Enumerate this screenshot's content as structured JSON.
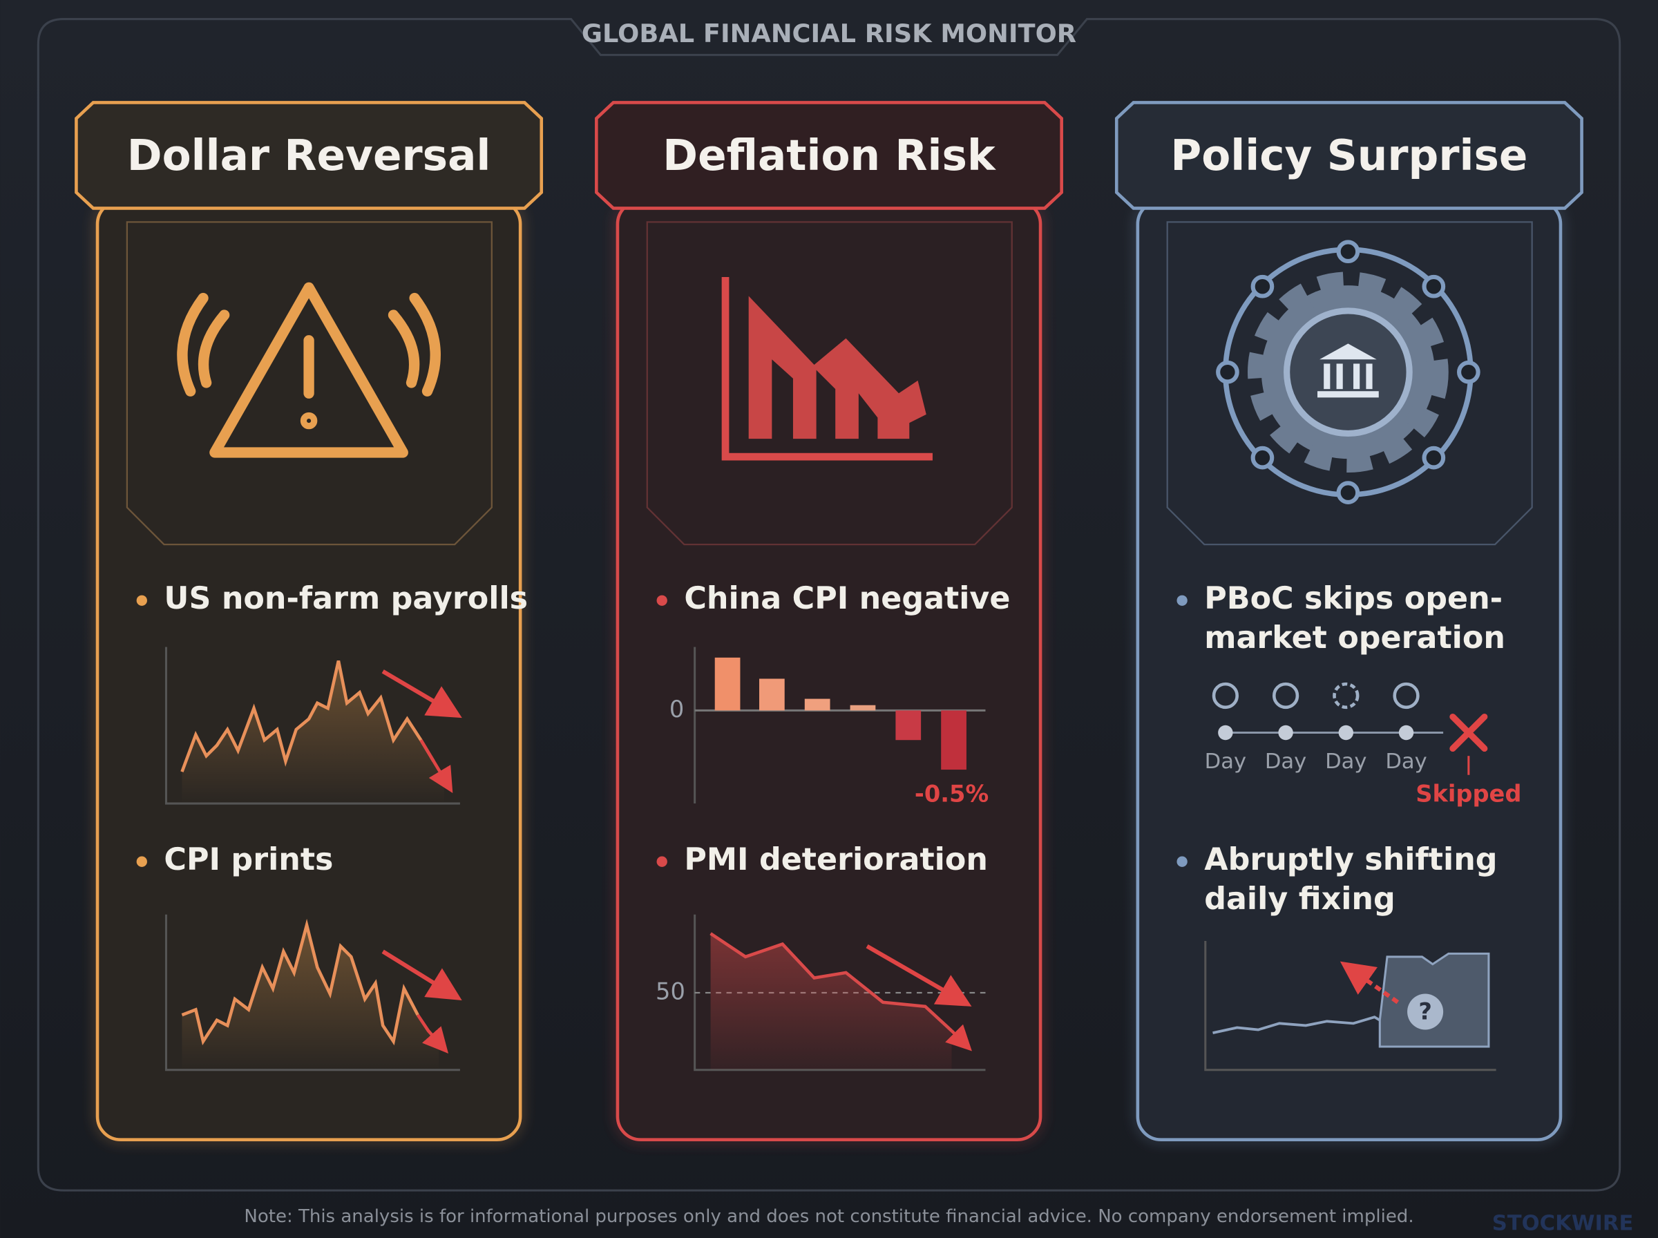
{
  "header": {
    "title": "GLOBAL FINANCIAL RISK MONITOR"
  },
  "panels": [
    {
      "title": "Dollar Reversal",
      "items": [
        {
          "lines": [
            "US non-farm payrolls"
          ]
        },
        {
          "lines": [
            "CPI prints"
          ]
        }
      ]
    },
    {
      "title": "Deflation Risk",
      "items": [
        {
          "lines": [
            "China CPI negative"
          ],
          "tick": "0",
          "label": "-0.5%"
        },
        {
          "lines": [
            "PMI deterioration"
          ],
          "tick": "50"
        }
      ]
    },
    {
      "title": "Policy Surprise",
      "items": [
        {
          "lines": [
            "PBoC skips open-",
            "market operation"
          ],
          "days": [
            "Day",
            "Day",
            "Day",
            "Day"
          ],
          "skipped": "Skipped"
        },
        {
          "lines": [
            "Abruptly shifting",
            "daily fixing"
          ]
        }
      ]
    }
  ],
  "footer": {
    "note": "Note: This analysis is for informational purposes only and does not constitute financial advice. No company endorsement implied.",
    "brand": "STOCKWIRE"
  }
}
